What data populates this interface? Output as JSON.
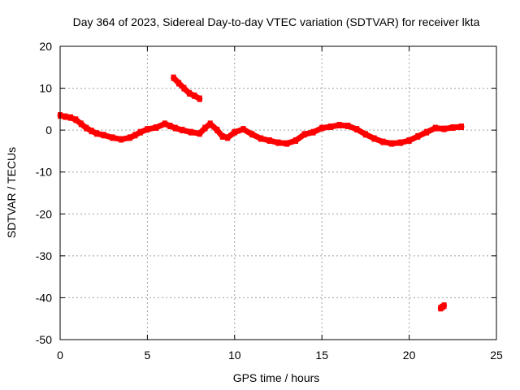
{
  "chart_data": {
    "type": "scatter",
    "title": "Day 364 of 2023, Sidereal Day-to-day VTEC variation (SDTVAR) for receiver lkta",
    "xlabel": "GPS time / hours",
    "ylabel": "SDTVAR / TECUs",
    "xlim": [
      0,
      25
    ],
    "ylim": [
      -50,
      20
    ],
    "xticks": [
      0,
      5,
      10,
      15,
      20,
      25
    ],
    "yticks": [
      -50,
      -40,
      -30,
      -20,
      -10,
      0,
      10,
      20
    ],
    "xtick_labels": [
      "0",
      "5",
      "10",
      "15",
      "20",
      "25"
    ],
    "ytick_labels": [
      "-50",
      "-40",
      "-30",
      "-20",
      "-10",
      "0",
      "10",
      "20"
    ],
    "grid": true,
    "marker_color": "#ff0000",
    "series": [
      {
        "name": "main trace",
        "x": [
          0.0,
          0.3,
          0.6,
          0.9,
          1.2,
          1.5,
          1.8,
          2.1,
          2.5,
          3.0,
          3.5,
          4.0,
          4.3,
          4.6,
          5.0,
          5.5,
          6.0,
          6.3,
          6.6,
          7.0,
          7.5,
          8.0,
          8.3,
          8.6,
          9.0,
          9.3,
          9.6,
          10.0,
          10.5,
          11.0,
          11.5,
          12.0,
          12.5,
          13.0,
          13.5,
          14.0,
          14.5,
          15.0,
          15.5,
          16.0,
          16.5,
          17.0,
          17.5,
          18.0,
          18.5,
          19.0,
          19.5,
          20.0,
          20.5,
          21.0,
          21.5,
          22.0,
          22.5,
          23.0
        ],
        "y": [
          3.5,
          3.2,
          3.0,
          2.5,
          1.5,
          0.5,
          -0.2,
          -0.8,
          -1.2,
          -1.8,
          -2.2,
          -1.8,
          -1.2,
          -0.5,
          0.2,
          0.6,
          1.5,
          1.0,
          0.5,
          0.0,
          -0.5,
          -0.8,
          0.5,
          1.5,
          0.0,
          -1.5,
          -1.8,
          -0.5,
          0.2,
          -1.0,
          -2.0,
          -2.5,
          -3.0,
          -3.2,
          -2.5,
          -1.0,
          -0.5,
          0.5,
          0.8,
          1.2,
          1.0,
          0.2,
          -1.0,
          -2.0,
          -2.8,
          -3.2,
          -3.0,
          -2.5,
          -1.5,
          -0.5,
          0.5,
          0.3,
          0.6,
          0.8
        ]
      },
      {
        "name": "segment near 6.5h",
        "x": [
          6.5,
          6.8,
          7.1,
          7.4,
          7.7,
          8.0
        ],
        "y": [
          12.5,
          11.2,
          10.0,
          8.8,
          8.2,
          7.5
        ]
      },
      {
        "name": "segment near 22h",
        "x": [
          21.8,
          21.9,
          22.0
        ],
        "y": [
          -42.5,
          -42.2,
          -41.9
        ]
      }
    ]
  }
}
